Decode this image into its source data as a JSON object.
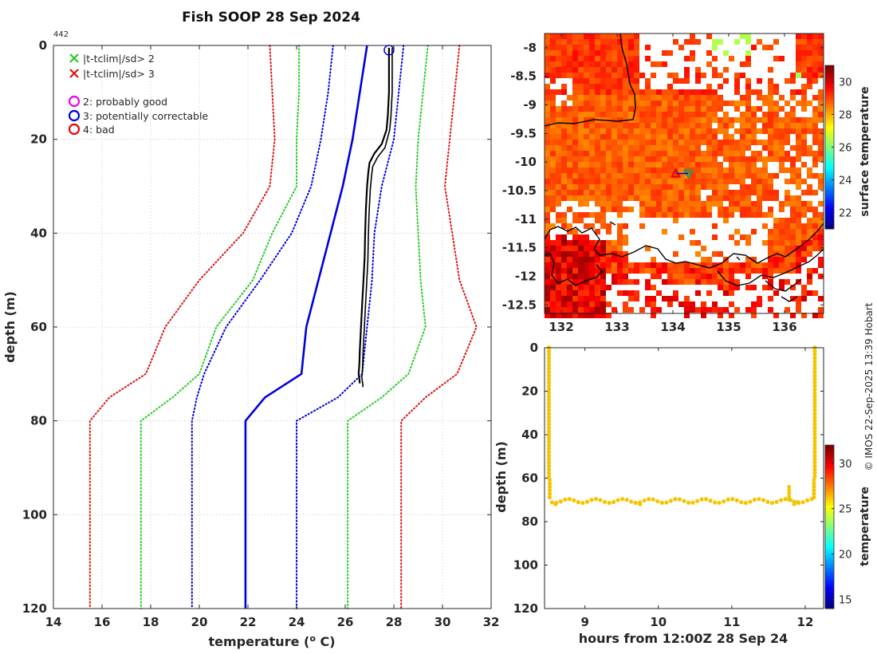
{
  "title": "Fish SOOP 28 Sep 2024",
  "profile_count": "442",
  "credit": "© IMOS 22-Sep-2025 13:39 Hobart",
  "colors": {
    "sd2": "#22cc22",
    "sd3": "#dd1111",
    "clim": "#0000dd",
    "profile": "#000000",
    "flag_good": "#ee00ee",
    "flag_correctable": "#0000dd",
    "flag_bad": "#ee0000"
  },
  "legend": {
    "sd2": "|t-tclim|/sd> 2",
    "sd3": "|t-tclim|/sd> 3",
    "flag2": "2: probably good",
    "flag3": "3: potentially correctable",
    "flag4": "4: bad"
  },
  "chart_data": [
    {
      "id": "profile",
      "type": "line",
      "title": "Fish SOOP 28 Sep 2024",
      "xlabel": "temperature (o C)",
      "ylabel": "depth (m)",
      "xlim": [
        14,
        32
      ],
      "ylim": [
        0,
        120
      ],
      "y_reversed": true,
      "grid": true,
      "xticks": [
        14,
        16,
        18,
        20,
        22,
        24,
        26,
        28,
        30,
        32
      ],
      "yticks": [
        0,
        20,
        40,
        60,
        80,
        100,
        120
      ],
      "depths": [
        0,
        10,
        20,
        30,
        40,
        50,
        60,
        70,
        75,
        80,
        120
      ],
      "series": [
        {
          "name": "climatology mean",
          "style": "solid",
          "color": "#0000dd",
          "values": [
            26.9,
            26.6,
            26.3,
            25.9,
            25.4,
            24.9,
            24.4,
            24.2,
            22.7,
            21.9,
            21.9
          ]
        },
        {
          "name": "-1 sd",
          "style": "dotted",
          "color": "#0000dd",
          "values": [
            25.5,
            25.3,
            25.0,
            24.6,
            23.8,
            22.5,
            21.1,
            20.2,
            19.9,
            19.7,
            19.7
          ]
        },
        {
          "name": "+1 sd",
          "style": "dotted",
          "color": "#0000dd",
          "values": [
            28.4,
            28.2,
            28.0,
            27.5,
            27.2,
            27.1,
            26.9,
            26.7,
            25.7,
            24.0,
            24.0
          ]
        },
        {
          "name": "-2 sd",
          "style": "dotted",
          "color": "#22cc22",
          "values": [
            24.1,
            24.1,
            24.0,
            24.0,
            23.0,
            22.2,
            20.7,
            20.0,
            18.9,
            17.6,
            17.6
          ]
        },
        {
          "name": "+2 sd",
          "style": "dotted",
          "color": "#22cc22",
          "values": [
            29.4,
            29.2,
            29.0,
            28.9,
            29.0,
            29.1,
            29.3,
            28.6,
            27.5,
            26.1,
            26.1
          ]
        },
        {
          "name": "-3 sd",
          "style": "dotted",
          "color": "#dd1111",
          "values": [
            22.9,
            23.0,
            23.1,
            22.9,
            21.8,
            20.0,
            18.6,
            17.8,
            16.3,
            15.5,
            15.5
          ]
        },
        {
          "name": "+3 sd",
          "style": "dotted",
          "color": "#dd1111",
          "values": [
            30.7,
            30.5,
            30.3,
            30.1,
            30.4,
            30.7,
            31.4,
            30.6,
            29.3,
            28.3,
            28.3
          ]
        }
      ],
      "profile_depth": [
        0.5,
        2,
        5,
        10,
        15,
        18,
        21,
        23,
        25,
        27,
        30,
        35,
        40,
        45,
        50,
        55,
        60,
        65,
        68,
        70,
        71,
        72
      ],
      "profile_temp": [
        27.8,
        27.8,
        27.8,
        27.8,
        27.75,
        27.7,
        27.5,
        27.2,
        27.0,
        26.95,
        26.9,
        26.85,
        26.82,
        26.8,
        26.75,
        26.7,
        26.65,
        26.6,
        26.58,
        26.55,
        26.58,
        26.6
      ],
      "flag_marker": {
        "temp": 27.8,
        "depth": 1,
        "flag": 3
      }
    },
    {
      "id": "map",
      "type": "heatmap",
      "colorbar_label": "surface temperature",
      "colorbar_ticks": [
        22,
        24,
        26,
        28,
        30
      ],
      "colorbar_range": [
        21,
        31
      ],
      "xticks": [
        132,
        133,
        134,
        135,
        136
      ],
      "yticks": [
        -8,
        -8.5,
        -9,
        -9.5,
        -10,
        -10.5,
        -11,
        -11.5,
        -12,
        -12.5
      ],
      "xlim": [
        131.7,
        136.7
      ],
      "ylim": [
        -12.65,
        -7.75
      ],
      "markers": [
        {
          "lon": 134.05,
          "lat": -10.2,
          "shape": "triangle-up",
          "color": "#ee0000"
        },
        {
          "lon": 134.28,
          "lat": -10.2,
          "shape": "triangle-down",
          "color": "#00aa66"
        }
      ]
    },
    {
      "id": "section",
      "type": "scatter",
      "xlabel": "hours from 12:00Z 28 Sep 24",
      "ylabel": "depth (m)",
      "colorbar_label": "temperature",
      "colorbar_ticks": [
        15,
        20,
        25,
        30
      ],
      "colorbar_range": [
        14,
        32
      ],
      "xticks": [
        9,
        10,
        11,
        12
      ],
      "yticks": [
        0,
        20,
        40,
        60,
        80,
        100,
        120
      ],
      "xlim": [
        8.45,
        12.25
      ],
      "ylim": [
        0,
        120
      ],
      "y_reversed": true,
      "point_color": "#f5c400"
    }
  ]
}
